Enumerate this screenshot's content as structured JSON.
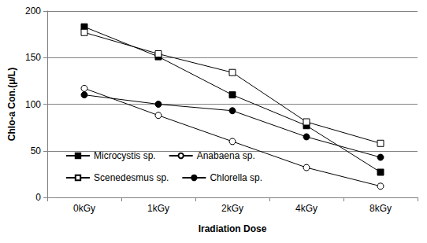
{
  "chart_data": {
    "type": "line",
    "x_label": "Iradiation Dose",
    "y_label": "Chlo-a Con.(μ/L)",
    "categories": [
      "0kGy",
      "1kGy",
      "2kGy",
      "4kGy",
      "8kGy"
    ],
    "series": [
      {
        "name": "Microcystis sp.",
        "color": "#000000",
        "marker": "square",
        "values": [
          183,
          151,
          110,
          77,
          27
        ]
      },
      {
        "name": "Anabaena sp.",
        "color": "#000000",
        "marker": "open_circle",
        "values": [
          117,
          88,
          60,
          32,
          12
        ]
      },
      {
        "name": "Scenedesmus sp.",
        "color": "#000000",
        "marker": "open_square",
        "values": [
          177,
          154,
          134,
          81,
          58
        ]
      },
      {
        "name": "Chlorella sp.",
        "color": "#000000",
        "marker": "circle",
        "values": [
          110,
          100,
          93,
          65,
          43
        ]
      }
    ],
    "ylim": [
      0,
      200
    ],
    "yticks": [
      0,
      50,
      100,
      150,
      200
    ],
    "grid": true,
    "legend": "lower left"
  }
}
